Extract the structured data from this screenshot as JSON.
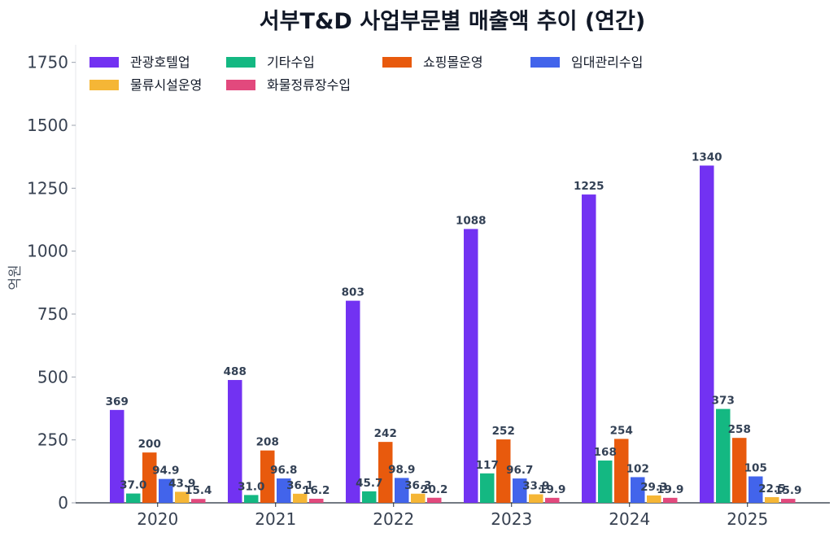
{
  "chart_data": {
    "type": "bar",
    "title": "서부T&D 사업부문별 매출액 추이 (연간)",
    "xlabel": "",
    "ylabel": "억원",
    "ylim": [
      0,
      1820
    ],
    "yticks": [
      0,
      250,
      500,
      750,
      1000,
      1250,
      1500,
      1750
    ],
    "grid": false,
    "legend_position": "top-left",
    "categories": [
      "2020",
      "2021",
      "2022",
      "2023",
      "2024",
      "2025"
    ],
    "series": [
      {
        "name": "관광호텔업",
        "color": "#7232f2",
        "values": [
          369,
          488,
          803,
          1088,
          1225,
          1340
        ],
        "labels": [
          "369",
          "488",
          "803",
          "1088",
          "1225",
          "1340"
        ]
      },
      {
        "name": "기타수입",
        "color": "#14b882",
        "values": [
          37.0,
          31.0,
          45.7,
          117,
          168,
          373
        ],
        "labels": [
          "37.0",
          "31.0",
          "45.7",
          "117",
          "168",
          "373"
        ]
      },
      {
        "name": "쇼핑몰운영",
        "color": "#e85a0d",
        "values": [
          200,
          208,
          242,
          252,
          254,
          258
        ],
        "labels": [
          "200",
          "208",
          "242",
          "252",
          "254",
          "258"
        ]
      },
      {
        "name": "임대관리수입",
        "color": "#4264eb",
        "values": [
          94.9,
          96.8,
          98.9,
          96.7,
          102,
          105
        ],
        "labels": [
          "94.9",
          "96.8",
          "98.9",
          "96.7",
          "102",
          "105"
        ]
      },
      {
        "name": "물류시설운영",
        "color": "#f5b636",
        "values": [
          43.9,
          36.1,
          36.3,
          33.9,
          29.3,
          22.5
        ],
        "labels": [
          "43.9",
          "36.1",
          "36.3",
          "33.9",
          "29.3",
          "22.5"
        ]
      },
      {
        "name": "화물정류장수입",
        "color": "#e2497d",
        "values": [
          15.4,
          16.2,
          20.2,
          19.9,
          19.9,
          15.9
        ],
        "labels": [
          "15.4",
          "16.2",
          "20.2",
          "19.9",
          "19.9",
          "15.9"
        ]
      }
    ]
  }
}
